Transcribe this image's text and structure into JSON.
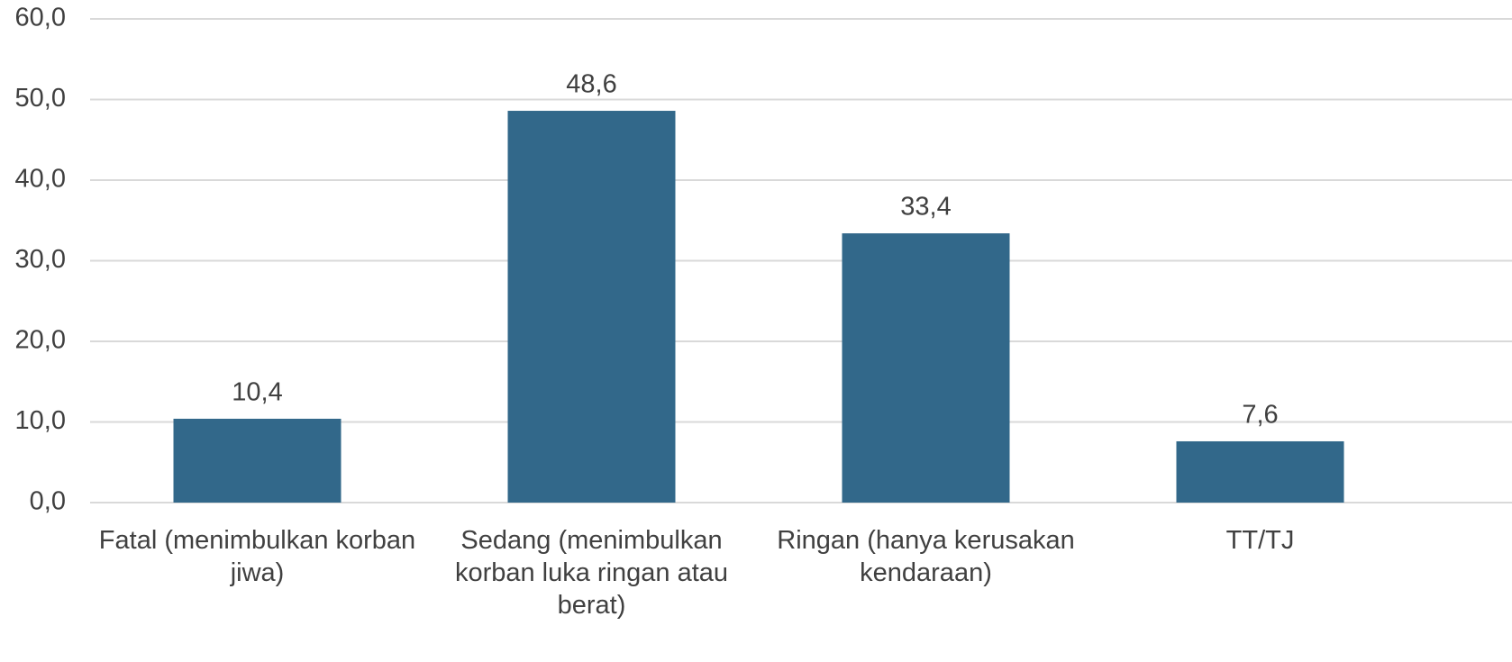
{
  "chart_data": {
    "type": "bar",
    "categories": [
      "Fatal (menimbulkan korban jiwa)",
      "Sedang (menimbulkan korban luka ringan atau berat)",
      "Ringan (hanya kerusakan kendaraan)",
      "TT/TJ"
    ],
    "values": [
      10.4,
      48.6,
      33.4,
      7.6
    ],
    "value_labels": [
      "10,4",
      "48,6",
      "33,4",
      "7,6"
    ],
    "color": "#32688a",
    "ylim": [
      0,
      60
    ],
    "yticks": [
      {
        "value": 0,
        "label": "0,0"
      },
      {
        "value": 10,
        "label": "10,0"
      },
      {
        "value": 20,
        "label": "20,0"
      },
      {
        "value": 30,
        "label": "30,0"
      },
      {
        "value": 40,
        "label": "40,0"
      },
      {
        "value": 50,
        "label": "50,0"
      },
      {
        "value": 60,
        "label": "60,0"
      }
    ],
    "grid": true
  }
}
